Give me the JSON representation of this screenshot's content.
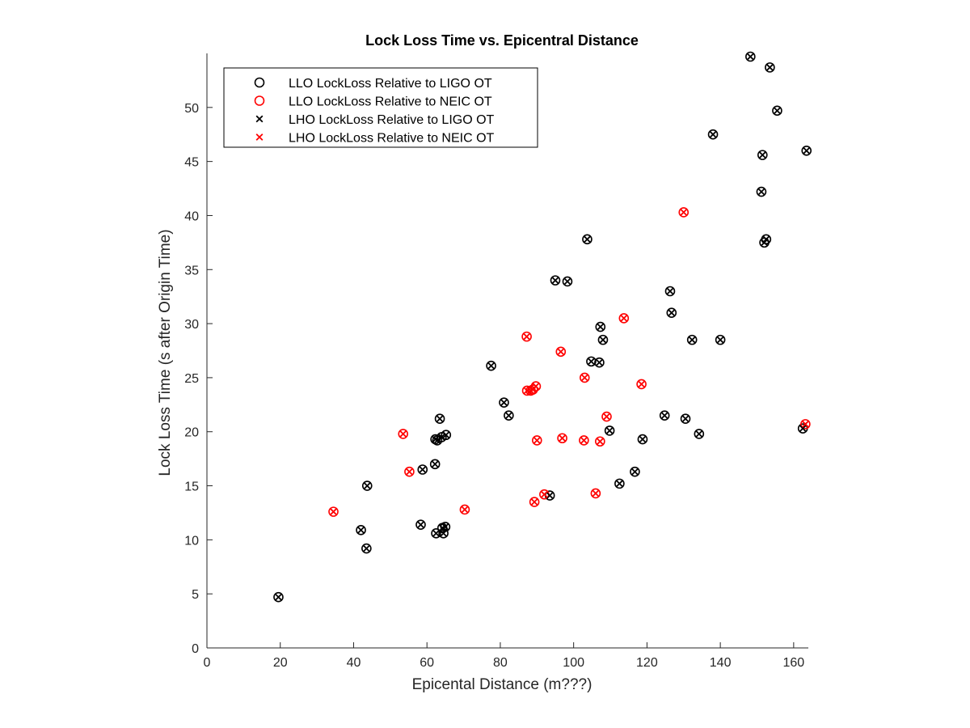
{
  "chart_data": {
    "type": "scatter",
    "title": "Lock Loss Time vs. Epicentral Distance",
    "xlabel": "Epicental Distance (m???)",
    "ylabel": "Lock Loss Time (s after Origin Time)",
    "xlim": [
      0,
      164
    ],
    "ylim": [
      0,
      55
    ],
    "xticks": [
      0,
      20,
      40,
      60,
      80,
      100,
      120,
      140,
      160
    ],
    "yticks": [
      0,
      5,
      10,
      15,
      20,
      25,
      30,
      35,
      40,
      45,
      50
    ],
    "grid": false,
    "legend_position": "top-left",
    "series": [
      {
        "name": "LLO LockLoss Relative to LIGO OT",
        "marker": "circle",
        "color": "#000000",
        "points": [
          [
            19.5,
            4.7
          ],
          [
            42,
            10.9
          ],
          [
            43.5,
            9.2
          ],
          [
            43.7,
            15.0
          ],
          [
            58.3,
            11.4
          ],
          [
            58.8,
            16.5
          ],
          [
            62.2,
            17.0
          ],
          [
            62.5,
            10.6
          ],
          [
            62.3,
            19.3
          ],
          [
            62.8,
            19.2
          ],
          [
            63.5,
            21.2
          ],
          [
            64,
            19.5
          ],
          [
            64.2,
            11.1
          ],
          [
            64.5,
            10.6
          ],
          [
            65,
            11.2
          ],
          [
            65.2,
            19.7
          ],
          [
            77.5,
            26.1
          ],
          [
            81,
            22.7
          ],
          [
            82.3,
            21.5
          ],
          [
            93.5,
            14.1
          ],
          [
            95,
            34.0
          ],
          [
            98.3,
            33.9
          ],
          [
            103.7,
            37.8
          ],
          [
            104.8,
            26.5
          ],
          [
            107,
            26.4
          ],
          [
            107.3,
            29.7
          ],
          [
            108,
            28.5
          ],
          [
            109.8,
            20.1
          ],
          [
            112.5,
            15.2
          ],
          [
            116.7,
            16.3
          ],
          [
            118.8,
            19.3
          ],
          [
            124.8,
            21.5
          ],
          [
            126.3,
            33.0
          ],
          [
            126.7,
            31.0
          ],
          [
            130.5,
            21.2
          ],
          [
            132.3,
            28.5
          ],
          [
            134.2,
            19.8
          ],
          [
            138,
            47.5
          ],
          [
            140,
            28.5
          ],
          [
            148.2,
            54.7
          ],
          [
            151.2,
            42.2
          ],
          [
            151.5,
            45.6
          ],
          [
            152,
            37.5
          ],
          [
            152.5,
            37.8
          ],
          [
            153.5,
            53.7
          ],
          [
            155.5,
            49.7
          ],
          [
            162.5,
            20.3
          ],
          [
            163.5,
            46.0
          ]
        ]
      },
      {
        "name": "LLO LockLoss Relative to NEIC OT",
        "marker": "circle",
        "color": "#ff0000",
        "points": [
          [
            34.5,
            12.6
          ],
          [
            53.5,
            19.8
          ],
          [
            55.2,
            16.3
          ],
          [
            70.3,
            12.8
          ],
          [
            87.2,
            28.8
          ],
          [
            87.3,
            23.8
          ],
          [
            88.3,
            23.8
          ],
          [
            88.9,
            23.9
          ],
          [
            89.3,
            13.5
          ],
          [
            89.7,
            24.2
          ],
          [
            90,
            19.2
          ],
          [
            92,
            14.2
          ],
          [
            96.5,
            27.4
          ],
          [
            96.9,
            19.4
          ],
          [
            102.8,
            19.2
          ],
          [
            103,
            25.0
          ],
          [
            106,
            14.3
          ],
          [
            107.2,
            19.1
          ],
          [
            109,
            21.4
          ],
          [
            113.7,
            30.5
          ],
          [
            118.5,
            24.4
          ],
          [
            130,
            40.3
          ],
          [
            163.2,
            20.7
          ]
        ]
      },
      {
        "name": "LHO LockLoss Relative to LIGO OT",
        "marker": "x",
        "color": "#000000",
        "points": [
          [
            19.5,
            4.7
          ],
          [
            42,
            10.9
          ],
          [
            43.5,
            9.2
          ],
          [
            43.7,
            15.0
          ],
          [
            58.3,
            11.4
          ],
          [
            58.8,
            16.5
          ],
          [
            62.2,
            17.0
          ],
          [
            62.5,
            10.6
          ],
          [
            62.3,
            19.3
          ],
          [
            62.8,
            19.2
          ],
          [
            63.5,
            21.2
          ],
          [
            64,
            19.5
          ],
          [
            64.2,
            11.1
          ],
          [
            64.5,
            10.6
          ],
          [
            65,
            11.2
          ],
          [
            65.2,
            19.7
          ],
          [
            77.5,
            26.1
          ],
          [
            81,
            22.7
          ],
          [
            82.3,
            21.5
          ],
          [
            93.5,
            14.1
          ],
          [
            95,
            34.0
          ],
          [
            98.3,
            33.9
          ],
          [
            103.7,
            37.8
          ],
          [
            104.8,
            26.5
          ],
          [
            107,
            26.4
          ],
          [
            107.3,
            29.7
          ],
          [
            108,
            28.5
          ],
          [
            109.8,
            20.1
          ],
          [
            112.5,
            15.2
          ],
          [
            116.7,
            16.3
          ],
          [
            118.8,
            19.3
          ],
          [
            124.8,
            21.5
          ],
          [
            126.3,
            33.0
          ],
          [
            126.7,
            31.0
          ],
          [
            130.5,
            21.2
          ],
          [
            132.3,
            28.5
          ],
          [
            134.2,
            19.8
          ],
          [
            138,
            47.5
          ],
          [
            140,
            28.5
          ],
          [
            148.2,
            54.7
          ],
          [
            151.2,
            42.2
          ],
          [
            151.5,
            45.6
          ],
          [
            152,
            37.5
          ],
          [
            152.5,
            37.8
          ],
          [
            153.5,
            53.7
          ],
          [
            155.5,
            49.7
          ],
          [
            162.5,
            20.3
          ],
          [
            163.5,
            46.0
          ]
        ]
      },
      {
        "name": "LHO LockLoss Relative to NEIC OT",
        "marker": "x",
        "color": "#ff0000",
        "points": [
          [
            34.5,
            12.6
          ],
          [
            53.5,
            19.8
          ],
          [
            55.2,
            16.3
          ],
          [
            70.3,
            12.8
          ],
          [
            87.2,
            28.8
          ],
          [
            87.3,
            23.8
          ],
          [
            88.3,
            23.8
          ],
          [
            88.9,
            23.9
          ],
          [
            89.3,
            13.5
          ],
          [
            89.7,
            24.2
          ],
          [
            90,
            19.2
          ],
          [
            92,
            14.2
          ],
          [
            96.5,
            27.4
          ],
          [
            96.9,
            19.4
          ],
          [
            102.8,
            19.2
          ],
          [
            103,
            25.0
          ],
          [
            106,
            14.3
          ],
          [
            107.2,
            19.1
          ],
          [
            109,
            21.4
          ],
          [
            113.7,
            30.5
          ],
          [
            118.5,
            24.4
          ],
          [
            130,
            40.3
          ],
          [
            163.2,
            20.7
          ]
        ]
      }
    ]
  }
}
